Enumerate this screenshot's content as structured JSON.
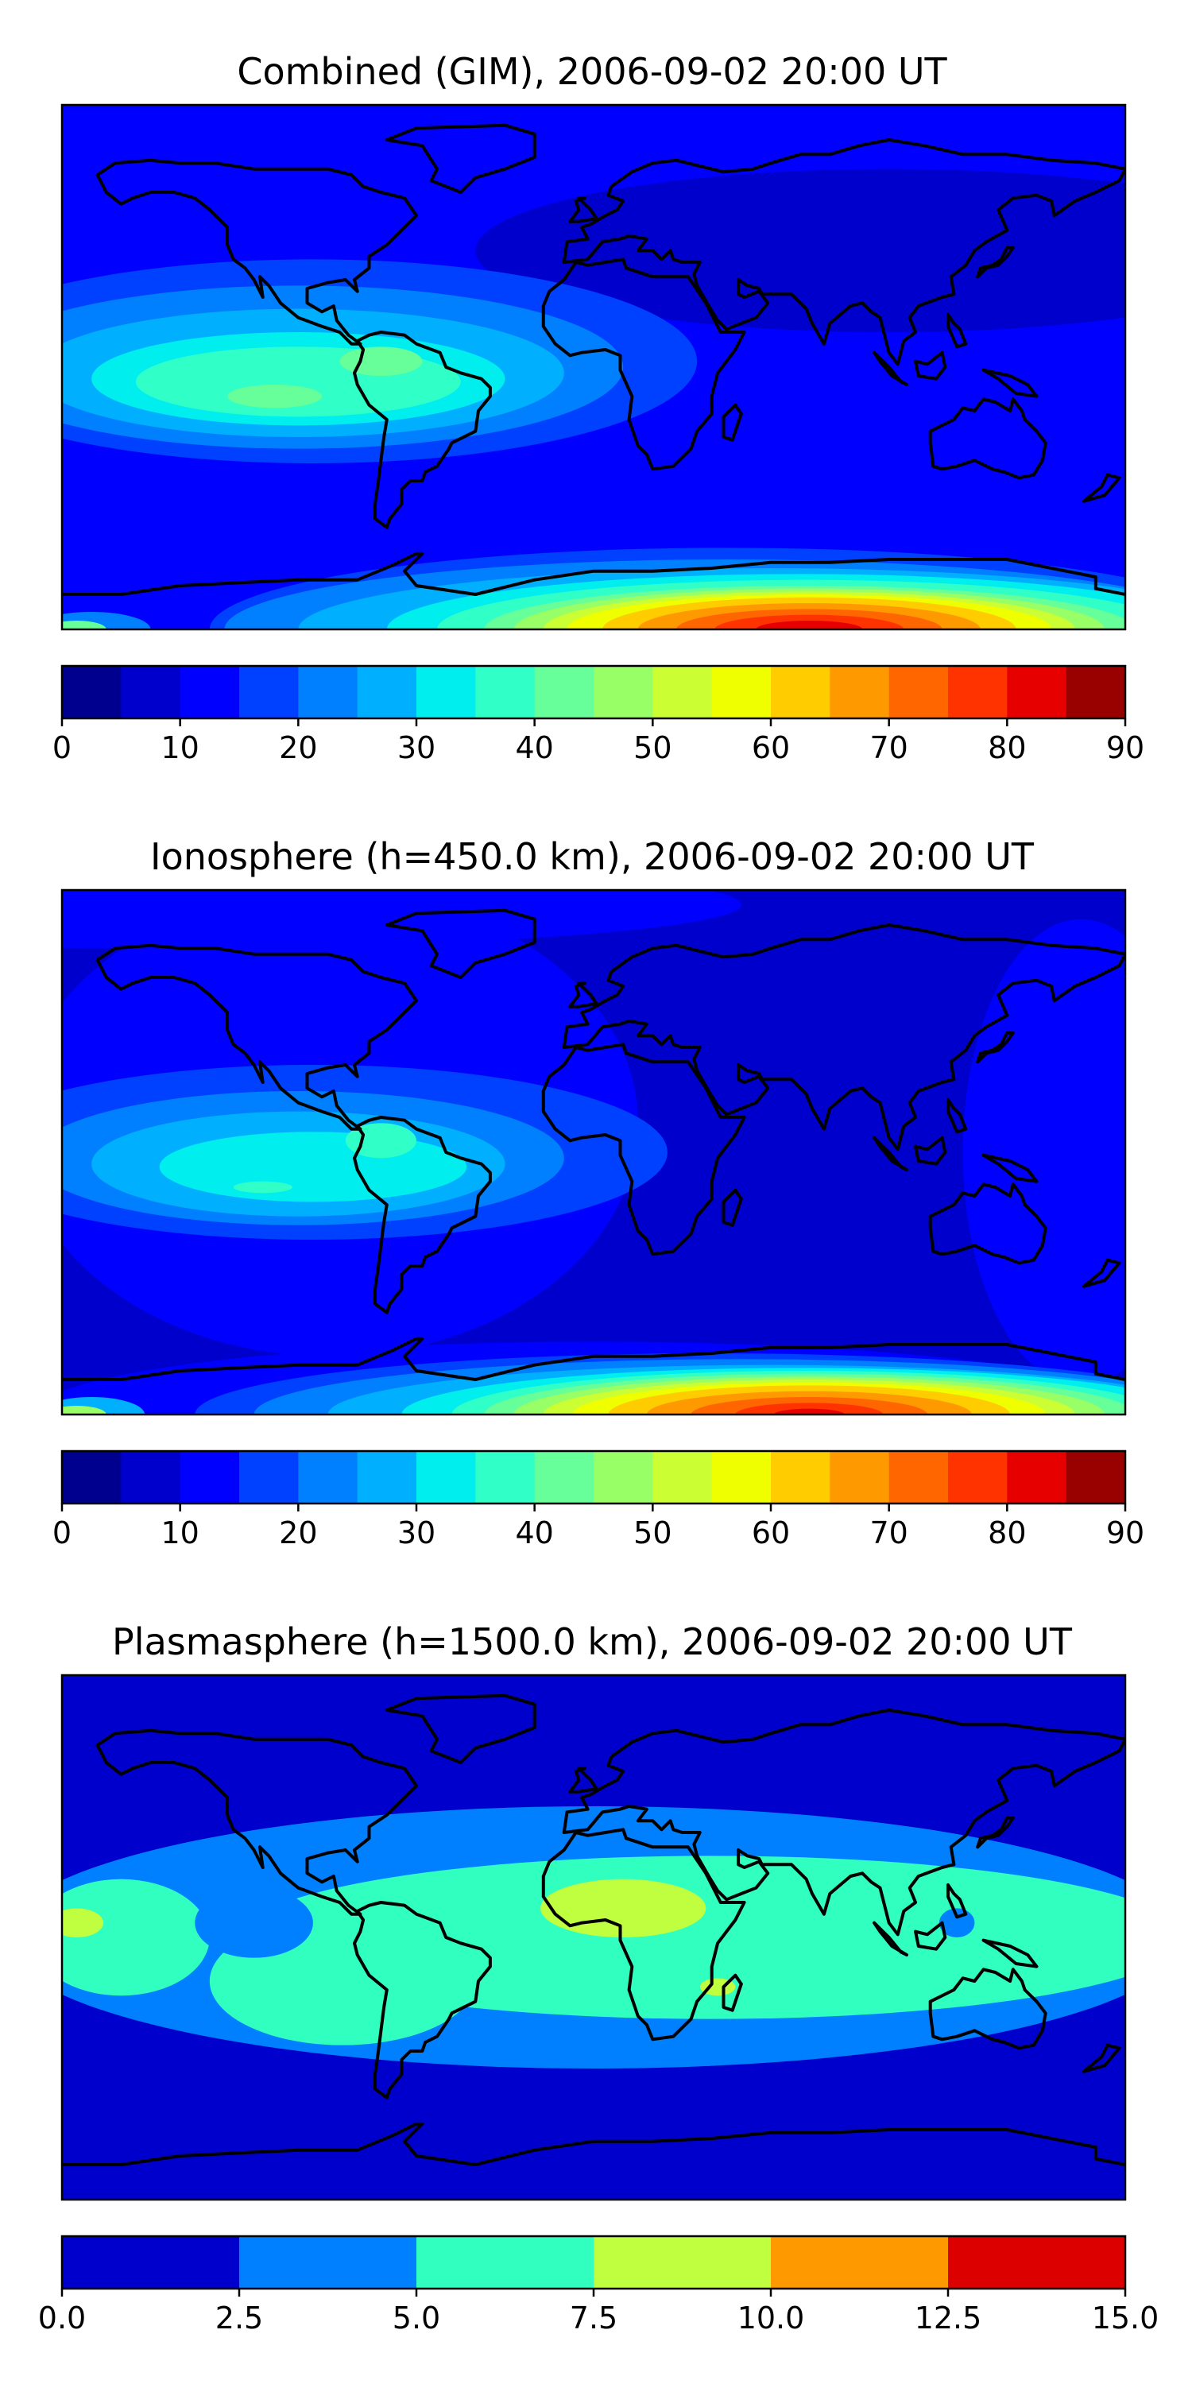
{
  "chart_data": [
    {
      "type": "heatmap",
      "title": "Combined (GIM), 2006-09-02 20:00 UT",
      "colorbar": {
        "levels": [
          0,
          5,
          10,
          15,
          20,
          25,
          30,
          35,
          40,
          45,
          50,
          55,
          60,
          65,
          70,
          75,
          80,
          85,
          90
        ],
        "tick_values": [
          0,
          10,
          20,
          30,
          40,
          50,
          60,
          70,
          80,
          90
        ],
        "tick_labels": [
          "0",
          "10",
          "20",
          "30",
          "40",
          "50",
          "60",
          "70",
          "80",
          "90"
        ],
        "colors": [
          "#00008f",
          "#0000cd",
          "#0000ff",
          "#0040ff",
          "#0080ff",
          "#00b0ff",
          "#00eeee",
          "#30ffc8",
          "#66ff99",
          "#99ff66",
          "#ccff33",
          "#f0ff00",
          "#ffcc00",
          "#ff9900",
          "#ff6600",
          "#ff3300",
          "#e60000",
          "#990000"
        ]
      },
      "background_level": 10,
      "contours": [
        {
          "level": 5,
          "lon": 100,
          "lat": 40,
          "rx": 140,
          "ry": 28
        },
        {
          "level": 15,
          "lon": -95,
          "lat": 2,
          "rx": 130,
          "ry": 35
        },
        {
          "level": 20,
          "lon": -100,
          "lat": 0,
          "rx": 110,
          "ry": 28
        },
        {
          "level": 25,
          "lon": -100,
          "lat": -2,
          "rx": 90,
          "ry": 22
        },
        {
          "level": 30,
          "lon": -100,
          "lat": -4,
          "rx": 70,
          "ry": 16
        },
        {
          "level": 35,
          "lon": -100,
          "lat": -5,
          "rx": 55,
          "ry": 12
        },
        {
          "level": 40,
          "lon": -72,
          "lat": 2,
          "rx": 14,
          "ry": 5
        },
        {
          "level": 40,
          "lon": -108,
          "lat": -10,
          "rx": 16,
          "ry": 4
        },
        {
          "level": 15,
          "lon": 45,
          "lat": -90,
          "rx": 175,
          "ry": 28
        },
        {
          "level": 20,
          "lon": 45,
          "lat": -90,
          "rx": 170,
          "ry": 24
        },
        {
          "level": 25,
          "lon": 60,
          "lat": -90,
          "rx": 160,
          "ry": 21
        },
        {
          "level": 30,
          "lon": 70,
          "lat": -90,
          "rx": 140,
          "ry": 19
        },
        {
          "level": 35,
          "lon": 72,
          "lat": -90,
          "rx": 125,
          "ry": 17
        },
        {
          "level": 40,
          "lon": 73,
          "lat": -90,
          "rx": 110,
          "ry": 15
        },
        {
          "level": 45,
          "lon": 73,
          "lat": -90,
          "rx": 100,
          "ry": 14
        },
        {
          "level": 50,
          "lon": 73,
          "lat": -90,
          "rx": 90,
          "ry": 13
        },
        {
          "level": 55,
          "lon": 73,
          "lat": -90,
          "rx": 82,
          "ry": 12
        },
        {
          "level": 60,
          "lon": 73,
          "lat": -90,
          "rx": 70,
          "ry": 11
        },
        {
          "level": 65,
          "lon": 73,
          "lat": -90,
          "rx": 58,
          "ry": 9
        },
        {
          "level": 70,
          "lon": 73,
          "lat": -90,
          "rx": 45,
          "ry": 7
        },
        {
          "level": 75,
          "lon": 73,
          "lat": -90,
          "rx": 32,
          "ry": 5
        },
        {
          "level": 80,
          "lon": 73,
          "lat": -90,
          "rx": 18,
          "ry": 3
        },
        {
          "level": 20,
          "lon": -170,
          "lat": -90,
          "rx": 20,
          "ry": 6
        },
        {
          "level": 40,
          "lon": -175,
          "lat": -90,
          "rx": 10,
          "ry": 3
        }
      ]
    },
    {
      "type": "heatmap",
      "title": "Ionosphere  (h=450.0 km), 2006-09-02 20:00 UT",
      "colorbar": {
        "levels": [
          0,
          5,
          10,
          15,
          20,
          25,
          30,
          35,
          40,
          45,
          50,
          55,
          60,
          65,
          70,
          75,
          80,
          85,
          90
        ],
        "tick_values": [
          0,
          10,
          20,
          30,
          40,
          50,
          60,
          70,
          80,
          90
        ],
        "tick_labels": [
          "0",
          "10",
          "20",
          "30",
          "40",
          "50",
          "60",
          "70",
          "80",
          "90"
        ],
        "colors": [
          "#00008f",
          "#0000cd",
          "#0000ff",
          "#0040ff",
          "#0080ff",
          "#00b0ff",
          "#00eeee",
          "#30ffc8",
          "#66ff99",
          "#99ff66",
          "#ccff33",
          "#f0ff00",
          "#ffcc00",
          "#ff9900",
          "#ff6600",
          "#ff3300",
          "#e60000",
          "#990000"
        ]
      },
      "background_level": 5,
      "contours": [
        {
          "level": 10,
          "lon": -90,
          "lat": 10,
          "rx": 105,
          "ry": 80
        },
        {
          "level": 10,
          "lon": 165,
          "lat": 0,
          "rx": 40,
          "ry": 80
        },
        {
          "level": 10,
          "lon": -150,
          "lat": 85,
          "rx": 200,
          "ry": 15
        },
        {
          "level": 15,
          "lon": -95,
          "lat": 0,
          "rx": 120,
          "ry": 30
        },
        {
          "level": 20,
          "lon": -100,
          "lat": -2,
          "rx": 90,
          "ry": 23
        },
        {
          "level": 25,
          "lon": -100,
          "lat": -4,
          "rx": 70,
          "ry": 18
        },
        {
          "level": 30,
          "lon": -95,
          "lat": -5,
          "rx": 52,
          "ry": 12
        },
        {
          "level": 35,
          "lon": -72,
          "lat": 4,
          "rx": 12,
          "ry": 6
        },
        {
          "level": 35,
          "lon": -112,
          "lat": -12,
          "rx": 10,
          "ry": 2
        },
        {
          "level": 10,
          "lon": 0,
          "lat": -90,
          "rx": 190,
          "ry": 25
        },
        {
          "level": 15,
          "lon": 40,
          "lat": -90,
          "rx": 175,
          "ry": 21
        },
        {
          "level": 20,
          "lon": 50,
          "lat": -90,
          "rx": 165,
          "ry": 19
        },
        {
          "level": 25,
          "lon": 60,
          "lat": -90,
          "rx": 150,
          "ry": 17
        },
        {
          "level": 30,
          "lon": 70,
          "lat": -90,
          "rx": 135,
          "ry": 16
        },
        {
          "level": 35,
          "lon": 72,
          "lat": -90,
          "rx": 120,
          "ry": 15
        },
        {
          "level": 40,
          "lon": 73,
          "lat": -90,
          "rx": 110,
          "ry": 14
        },
        {
          "level": 45,
          "lon": 73,
          "lat": -90,
          "rx": 100,
          "ry": 13
        },
        {
          "level": 50,
          "lon": 73,
          "lat": -90,
          "rx": 90,
          "ry": 12
        },
        {
          "level": 55,
          "lon": 73,
          "lat": -90,
          "rx": 80,
          "ry": 11
        },
        {
          "level": 60,
          "lon": 73,
          "lat": -90,
          "rx": 68,
          "ry": 10
        },
        {
          "level": 65,
          "lon": 73,
          "lat": -90,
          "rx": 55,
          "ry": 8
        },
        {
          "level": 70,
          "lon": 73,
          "lat": -90,
          "rx": 40,
          "ry": 6
        },
        {
          "level": 75,
          "lon": 73,
          "lat": -90,
          "rx": 25,
          "ry": 4
        },
        {
          "level": 80,
          "lon": 73,
          "lat": -90,
          "rx": 12,
          "ry": 2
        },
        {
          "level": 25,
          "lon": -170,
          "lat": -90,
          "rx": 18,
          "ry": 6
        },
        {
          "level": 45,
          "lon": -175,
          "lat": -90,
          "rx": 10,
          "ry": 3
        }
      ]
    },
    {
      "type": "heatmap",
      "title": "Plasmasphere (h=1500.0 km), 2006-09-02 20:00 UT",
      "colorbar": {
        "levels": [
          0.0,
          2.5,
          5.0,
          7.5,
          10.0,
          12.5,
          15.0
        ],
        "tick_values": [
          0.0,
          2.5,
          5.0,
          7.5,
          10.0,
          12.5,
          15.0
        ],
        "tick_labels": [
          "0.0",
          "2.5",
          "5.0",
          "7.5",
          "10.0",
          "12.5",
          "15.0"
        ],
        "colors": [
          "#0000cd",
          "#0080ff",
          "#30ffc0",
          "#c0ff40",
          "#ff9900",
          "#dd0000"
        ]
      },
      "background_level": 0,
      "contours": [
        {
          "level": 2.5,
          "lon": 0,
          "lat": 0,
          "rx": 200,
          "ry": 45
        },
        {
          "level": 5.0,
          "lon": 40,
          "lat": 0,
          "rx": 160,
          "ry": 28
        },
        {
          "level": 5.0,
          "lon": -160,
          "lat": 0,
          "rx": 30,
          "ry": 20
        },
        {
          "level": 5.0,
          "lon": -85,
          "lat": -15,
          "rx": 45,
          "ry": 22
        },
        {
          "level": 2.5,
          "lon": -115,
          "lat": 5,
          "rx": 20,
          "ry": 12
        },
        {
          "level": 2.5,
          "lon": 123,
          "lat": 5,
          "rx": 6,
          "ry": 5
        },
        {
          "level": 7.5,
          "lon": 10,
          "lat": 10,
          "rx": 28,
          "ry": 10
        },
        {
          "level": 7.5,
          "lon": 42,
          "lat": -17,
          "rx": 6,
          "ry": 3
        },
        {
          "level": 7.5,
          "lon": -175,
          "lat": 5,
          "rx": 9,
          "ry": 5
        }
      ]
    }
  ]
}
